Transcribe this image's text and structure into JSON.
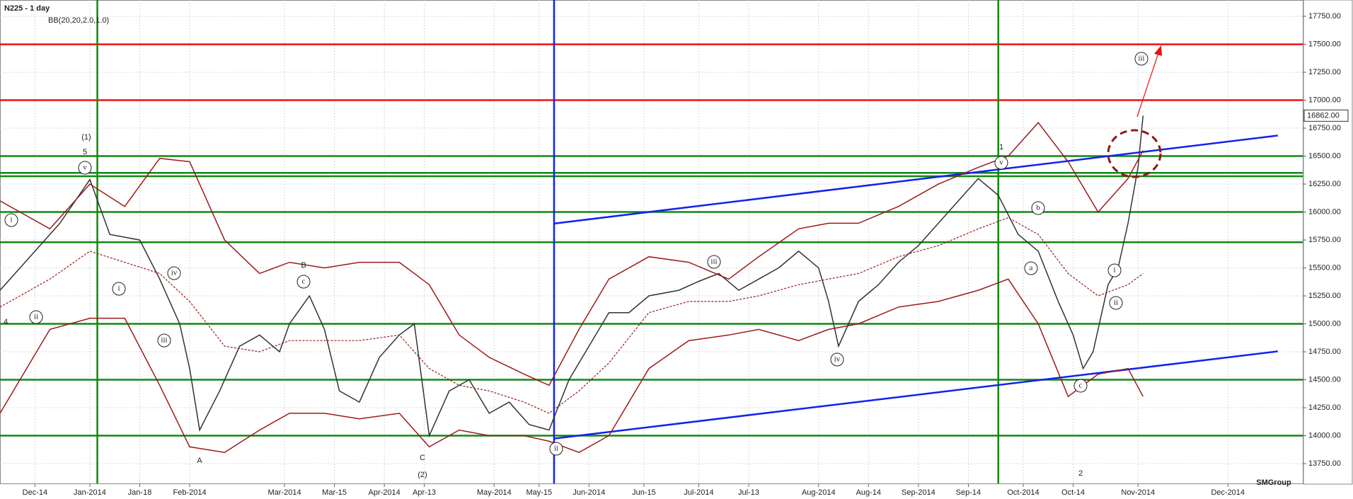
{
  "chart_data": {
    "type": "line",
    "title": "N225 - 1 day",
    "subtitle": "BB(20,20,2.0,1.0)",
    "watermark": "SMGroup",
    "xlim": [
      0,
      261
    ],
    "ylim": [
      13573,
      17896
    ],
    "grid": true,
    "xticks": [
      {
        "value": 7,
        "label": "Dec-14"
      },
      {
        "value": 18,
        "label": "Jan-2014"
      },
      {
        "value": 28,
        "label": "Jan-18"
      },
      {
        "value": 38,
        "label": "Feb-2014"
      },
      {
        "value": 57,
        "label": "Mar-2014"
      },
      {
        "value": 67,
        "label": "Mar-15"
      },
      {
        "value": 77,
        "label": "Apr-2014"
      },
      {
        "value": 85,
        "label": "Apr-13"
      },
      {
        "value": 99,
        "label": "May-2014"
      },
      {
        "value": 108,
        "label": "May-15"
      },
      {
        "value": 118,
        "label": "Jun-2014"
      },
      {
        "value": 129,
        "label": "Jun-15"
      },
      {
        "value": 140,
        "label": "Jul-2014"
      },
      {
        "value": 150,
        "label": "Jul-13"
      },
      {
        "value": 164,
        "label": "Aug-2014"
      },
      {
        "value": 174,
        "label": "Aug-14"
      },
      {
        "value": 184,
        "label": "Sep-2014"
      },
      {
        "value": 194,
        "label": "Sep-14"
      },
      {
        "value": 205,
        "label": "Oct-2014"
      },
      {
        "value": 215,
        "label": "Oct-14"
      },
      {
        "value": 228,
        "label": "Nov-2014"
      },
      {
        "value": 246,
        "label": "Dec-2014"
      }
    ],
    "yticks": [
      {
        "value": 17750,
        "label": "17750.00"
      },
      {
        "value": 17500,
        "label": "17500.00"
      },
      {
        "value": 17250,
        "label": "17250.00"
      },
      {
        "value": 17000,
        "label": "17000.00"
      },
      {
        "value": 16750,
        "label": "16750.00"
      },
      {
        "value": 16500,
        "label": "16500.00"
      },
      {
        "value": 16250,
        "label": "16250.00"
      },
      {
        "value": 16000,
        "label": "16000.00"
      },
      {
        "value": 15750,
        "label": "15750.00"
      },
      {
        "value": 15500,
        "label": "15500.00"
      },
      {
        "value": 15250,
        "label": "15250.00"
      },
      {
        "value": 15000,
        "label": "15000.00"
      },
      {
        "value": 14750,
        "label": "14750.00"
      },
      {
        "value": 14500,
        "label": "14500.00"
      },
      {
        "value": 14250,
        "label": "14250.00"
      },
      {
        "value": 14000,
        "label": "14000.00"
      },
      {
        "value": 13750,
        "label": "13750.00"
      }
    ],
    "series": [
      {
        "color": "#333333",
        "dash": false,
        "x": [
          0,
          7,
          12,
          18,
          22,
          28,
          32,
          36,
          38,
          40,
          44,
          48,
          52,
          56,
          58,
          62,
          65,
          68,
          72,
          76,
          80,
          83,
          86,
          90,
          94,
          98,
          102,
          106,
          110,
          114,
          118,
          122,
          126,
          130,
          136,
          140,
          144,
          148,
          152,
          156,
          160,
          164,
          166,
          168,
          172,
          176,
          180,
          184,
          188,
          192,
          196,
          200,
          204,
          208,
          212,
          215,
          217,
          219,
          222,
          224,
          226,
          228,
          229
        ],
        "values": [
          15300,
          15650,
          15900,
          16290,
          15800,
          15750,
          15400,
          15000,
          14600,
          14050,
          14400,
          14800,
          14900,
          14750,
          15000,
          15250,
          14950,
          14400,
          14300,
          14700,
          14900,
          15000,
          14000,
          14400,
          14500,
          14200,
          14300,
          14100,
          14050,
          14500,
          14800,
          15100,
          15100,
          15250,
          15300,
          15380,
          15450,
          15300,
          15400,
          15500,
          15650,
          15500,
          15200,
          14800,
          15200,
          15350,
          15550,
          15700,
          15900,
          16100,
          16300,
          16150,
          15800,
          15650,
          15200,
          14900,
          14600,
          14750,
          15350,
          15500,
          15900,
          16400,
          16862
        ]
      },
      {
        "color": "#9b1b1b",
        "dash": false,
        "x": [
          0,
          10,
          18,
          25,
          32,
          38,
          45,
          52,
          58,
          65,
          72,
          80,
          86,
          92,
          98,
          105,
          110,
          116,
          122,
          130,
          138,
          146,
          152,
          160,
          166,
          172,
          180,
          188,
          196,
          202,
          208,
          214,
          220,
          226,
          229
        ],
        "values": [
          16100,
          15850,
          16250,
          16050,
          16480,
          16450,
          15750,
          15450,
          15550,
          15500,
          15550,
          15550,
          15350,
          14900,
          14700,
          14550,
          14450,
          14950,
          15400,
          15600,
          15550,
          15400,
          15600,
          15850,
          15900,
          15900,
          16050,
          16250,
          16400,
          16500,
          16800,
          16450,
          16000,
          16300,
          16550
        ]
      },
      {
        "color": "#9b1b1b",
        "dash": true,
        "x": [
          0,
          10,
          18,
          25,
          32,
          38,
          45,
          52,
          58,
          65,
          72,
          80,
          86,
          92,
          98,
          105,
          110,
          116,
          122,
          130,
          138,
          146,
          152,
          160,
          166,
          172,
          180,
          188,
          196,
          202,
          208,
          214,
          220,
          226,
          229
        ],
        "values": [
          15150,
          15400,
          15650,
          15550,
          15450,
          15200,
          14800,
          14750,
          14850,
          14850,
          14850,
          14900,
          14600,
          14450,
          14400,
          14300,
          14200,
          14400,
          14650,
          15100,
          15200,
          15200,
          15250,
          15350,
          15400,
          15450,
          15600,
          15700,
          15850,
          15950,
          15800,
          15450,
          15250,
          15350,
          15450
        ]
      },
      {
        "color": "#9b1b1b",
        "dash": false,
        "x": [
          0,
          10,
          18,
          25,
          32,
          38,
          45,
          52,
          58,
          65,
          72,
          80,
          86,
          92,
          98,
          105,
          110,
          116,
          122,
          130,
          138,
          146,
          152,
          160,
          166,
          172,
          180,
          188,
          196,
          202,
          208,
          214,
          220,
          226,
          229
        ],
        "values": [
          14200,
          14950,
          15050,
          15050,
          14450,
          13900,
          13850,
          14050,
          14200,
          14200,
          14150,
          14200,
          13900,
          14050,
          14000,
          14000,
          13950,
          13850,
          14000,
          14600,
          14850,
          14900,
          14950,
          14850,
          14950,
          15000,
          15150,
          15200,
          15300,
          15400,
          15000,
          14350,
          14550,
          14600,
          14350
        ]
      }
    ],
    "levels": [
      {
        "value": 17500,
        "color": "#ee1111"
      },
      {
        "value": 17000,
        "color": "#ee1111"
      },
      {
        "value": 16500,
        "color": "#118811"
      },
      {
        "value": 16350,
        "color": "#118811"
      },
      {
        "value": 16320,
        "color": "#118811"
      },
      {
        "value": 16000,
        "color": "#118811"
      },
      {
        "value": 15730,
        "color": "#118811"
      },
      {
        "value": 15000,
        "color": "#118811"
      },
      {
        "value": 14500,
        "color": "#118811"
      },
      {
        "value": 14000,
        "color": "#118811"
      }
    ],
    "vlines": [
      {
        "value": 19.5,
        "color": "#118811"
      },
      {
        "value": 200,
        "color": "#118811"
      },
      {
        "value": 111,
        "color": "#1122ee"
      }
    ],
    "trendlines": [
      {
        "x": [
          111,
          256
        ],
        "y": [
          15897,
          16684
        ],
        "color": "#1122ee"
      },
      {
        "x": [
          111,
          256
        ],
        "y": [
          13974,
          14754
        ],
        "color": "#1122ee"
      }
    ],
    "last_price": {
      "value": 16862,
      "label": "16862.00"
    },
    "annotations": [
      "(1)",
      "5",
      "v",
      "A",
      "B",
      "c",
      "C",
      "(2)",
      "ii",
      "1",
      "v",
      "2",
      "c",
      "iii",
      "4",
      "iii",
      "iv",
      "a",
      "b",
      "i",
      "ii",
      "iv",
      "iii",
      "i",
      "i",
      "ii"
    ]
  }
}
